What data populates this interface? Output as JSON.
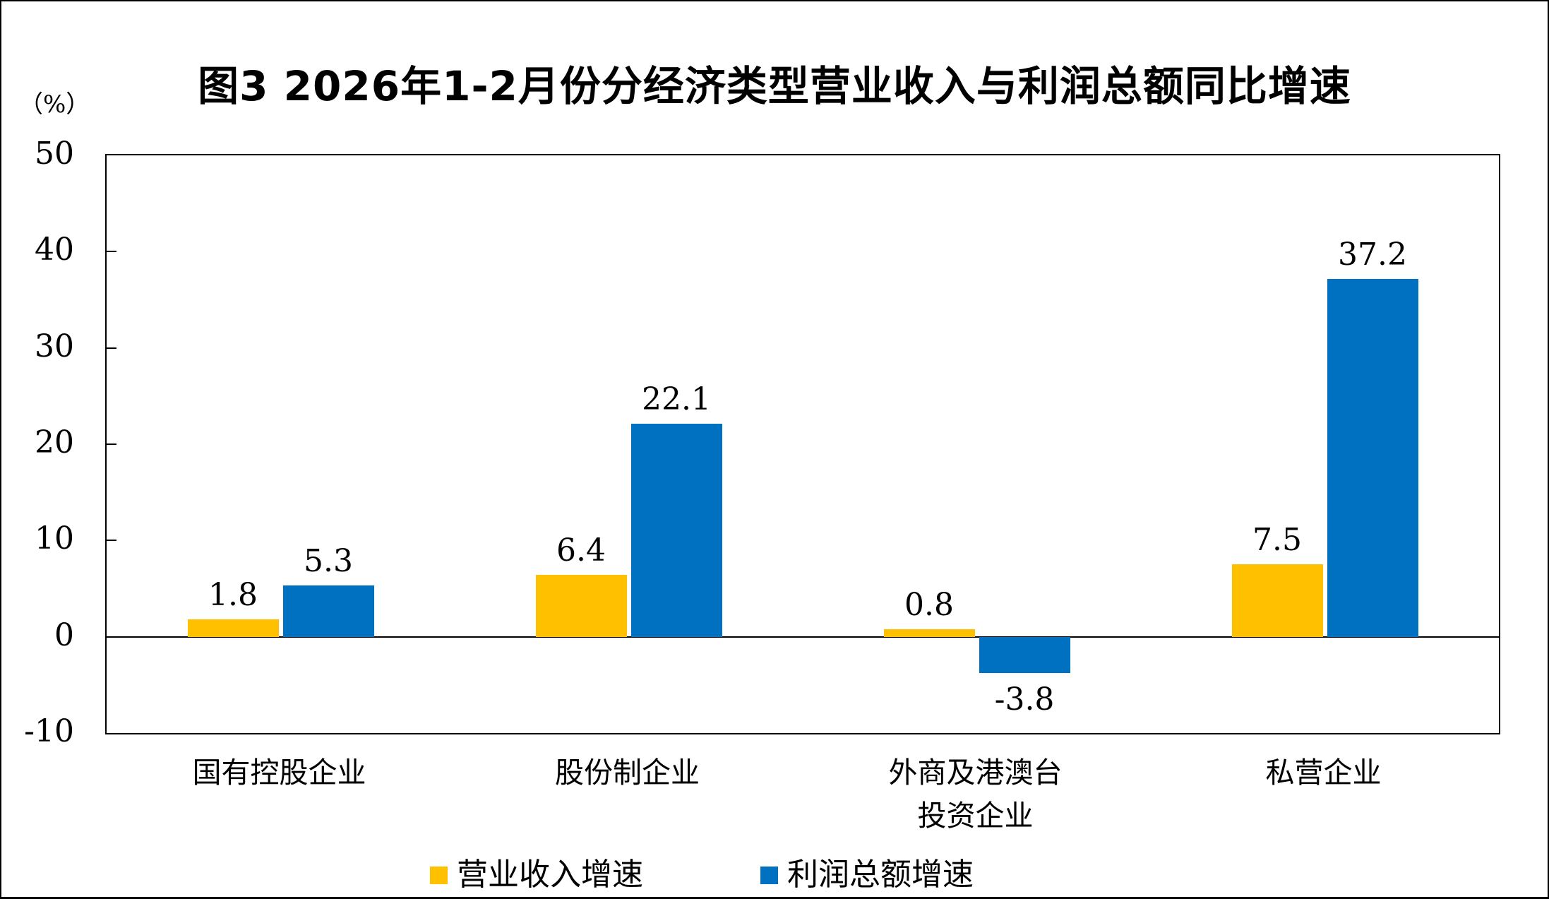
{
  "figure": {
    "title": "图3 2026年1-2月份分经济类型营业收入与利润总额同比增速",
    "y_unit_label": "（%）"
  },
  "chart_data": {
    "type": "bar",
    "categories": [
      "国有控股企业",
      "股份制企业",
      "外商及港澳台\n投资企业",
      "私营企业"
    ],
    "series": [
      {
        "name": "营业收入增速",
        "color": "#FFC000",
        "values": [
          1.8,
          6.4,
          0.8,
          7.5
        ]
      },
      {
        "name": "利润总额增速",
        "color": "#0070C0",
        "values": [
          5.3,
          22.1,
          -3.8,
          37.2
        ]
      }
    ],
    "value_labels": {
      "营业收入增速": [
        "1.8",
        "6.4",
        "0.8",
        "7.5"
      ],
      "利润总额增速": [
        "5.3",
        "22.1",
        "-3.8",
        "37.2"
      ]
    },
    "ylim": [
      -10,
      50
    ],
    "yticks": [
      -10,
      0,
      10,
      20,
      30,
      40,
      50
    ],
    "grid": false,
    "zero_line": true,
    "legend_position": "bottom",
    "axis_color": "#000000",
    "text_color": "#000000",
    "background": "#FFFFFF"
  }
}
